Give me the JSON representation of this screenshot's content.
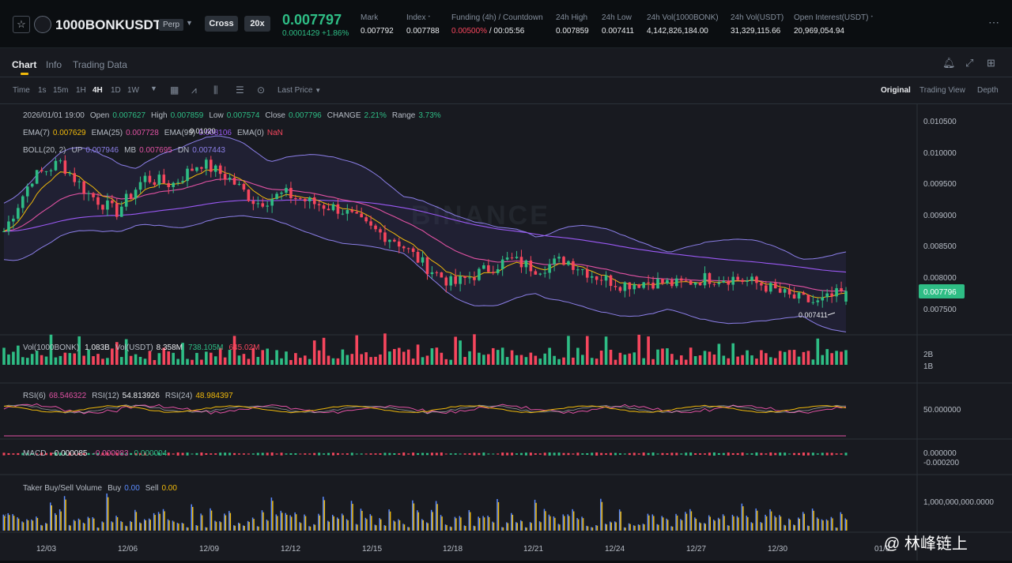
{
  "header": {
    "symbol": "1000BONKUSDT",
    "contract_type": "Perp",
    "margin_mode": "Cross",
    "leverage": "20x",
    "last_price": "0.007797",
    "change": "0.0001429 +1.86%",
    "stats": [
      {
        "label": "Mark",
        "value": "0.007792"
      },
      {
        "label": "Index",
        "value": "0.007788"
      },
      {
        "label": "Funding (4h) / Countdown",
        "value_a": "0.00500%",
        "value_b": " / 00:05:56"
      },
      {
        "label": "24h High",
        "value": "0.007859"
      },
      {
        "label": "24h Low",
        "value": "0.007411"
      },
      {
        "label": "24h Vol(1000BONK)",
        "value": "4,142,826,184.00"
      },
      {
        "label": "24h Vol(USDT)",
        "value": "31,329,115.66"
      },
      {
        "label": "Open Interest(USDT)",
        "value": "20,969,054.94"
      }
    ]
  },
  "tabs": [
    "Chart",
    "Info",
    "Trading Data"
  ],
  "toolbar": {
    "intervals": [
      "Time",
      "1s",
      "15m",
      "1H",
      "4H",
      "1D",
      "1W"
    ],
    "active_interval": "4H",
    "price_type": "Last Price",
    "views": [
      "Original",
      "Trading View",
      "Depth"
    ],
    "active_view": "Original"
  },
  "legend": {
    "ohlc": {
      "date": "2026/01/01 19:00",
      "open_l": "Open",
      "open": "0.007627",
      "high_l": "High",
      "high": "0.007859",
      "low_l": "Low",
      "low": "0.007574",
      "close_l": "Close",
      "close": "0.007796",
      "change_l": "CHANGE",
      "change": "2.21%",
      "range_l": "Range",
      "range": "3.73%"
    },
    "ema": {
      "ema7_l": "EMA(7)",
      "ema7": "0.007629",
      "ema25_l": "EMA(25)",
      "ema25": "0.007728",
      "ema99_l": "EMA(99)",
      "ema99": "0.008106",
      "ema0_l": "EMA(0)",
      "ema0": "NaN"
    },
    "boll": {
      "label": "BOLL(20, 2)",
      "up_l": "UP",
      "up": "0.007946",
      "mb_l": "MB",
      "mb": "0.007695",
      "dn_l": "DN",
      "dn": "0.007443"
    },
    "vol": {
      "label": "Vol(1000BONK)",
      "v1": "1.083B",
      "usdt_l": "Vol(USDT)",
      "v2": "8.358M",
      "v3": "738.105M",
      "v4": "645.02M"
    },
    "rsi": {
      "r6_l": "RSI(6)",
      "r6": "68.546322",
      "r12_l": "RSI(12)",
      "r12": "54.813926",
      "r24_l": "RSI(24)",
      "r24": "48.984397"
    },
    "macd": {
      "label": "MACD",
      "v1": "-0.000085",
      "v2": "-0.000083",
      "v3": "0.000004"
    },
    "taker": {
      "label": "Taker Buy/Sell Volume",
      "buy_l": "Buy",
      "buy": "0.00",
      "sell_l": "Sell",
      "sell": "0.00"
    }
  },
  "axis": {
    "price_ticks": [
      "0.010500",
      "0.010000",
      "0.009500",
      "0.009000",
      "0.008500",
      "0.008000",
      "0.007500"
    ],
    "current_price_tag": "0.007796",
    "low_marker": "0.007411",
    "high_marker": "0.01020",
    "vol_ticks": [
      "2B",
      "1B"
    ],
    "rsi_ticks": [
      "50.000000"
    ],
    "macd_ticks": [
      "0.000000",
      "-0.000200"
    ],
    "taker_ticks": [
      "1,000,000,000.0000"
    ],
    "dates": [
      "12/03",
      "12/06",
      "12/09",
      "12/12",
      "12/15",
      "12/18",
      "12/21",
      "12/24",
      "12/27",
      "12/30",
      "01/0"
    ]
  },
  "brand_watermark": "BINANCE",
  "image_watermark": "@ 林峰链上",
  "colors": {
    "up": "#2ebd85",
    "down": "#f6465d",
    "ema7": "#f0b90b",
    "ema25": "#e052a3",
    "ema99": "#9b59f5",
    "boll": "#8c7fe8",
    "bg": "#181a20"
  },
  "chart_data": {
    "type": "candlestick",
    "interval": "4H",
    "symbol": "1000BONKUSDT",
    "last_candle": {
      "time": "2026/01/01 19:00",
      "open": 0.007627,
      "high": 0.007859,
      "low": 0.007574,
      "close": 0.007796
    },
    "price_range": [
      0.0072,
      0.0107
    ],
    "anchor_closes": [
      [
        "12/02",
        0.00875
      ],
      [
        "12/03",
        0.0096
      ],
      [
        "12/04",
        0.00985
      ],
      [
        "12/05",
        0.00935
      ],
      [
        "12/06",
        0.00905
      ],
      [
        "12/07",
        0.0096
      ],
      [
        "12/08",
        0.0095
      ],
      [
        "12/09",
        0.00985
      ],
      [
        "12/10",
        0.0096
      ],
      [
        "12/11",
        0.0092
      ],
      [
        "12/12",
        0.00935
      ],
      [
        "12/13",
        0.0092
      ],
      [
        "12/14",
        0.0091
      ],
      [
        "12/15",
        0.0088
      ],
      [
        "12/16",
        0.0086
      ],
      [
        "12/17",
        0.0082
      ],
      [
        "12/18",
        0.0079
      ],
      [
        "12/19",
        0.0081
      ],
      [
        "12/20",
        0.0083
      ],
      [
        "12/21",
        0.00815
      ],
      [
        "12/22",
        0.0083
      ],
      [
        "12/23",
        0.00805
      ],
      [
        "12/24",
        0.0079
      ],
      [
        "12/25",
        0.00795
      ],
      [
        "12/26",
        0.0079
      ],
      [
        "12/27",
        0.008
      ],
      [
        "12/28",
        0.008
      ],
      [
        "12/29",
        0.0079
      ],
      [
        "12/30",
        0.0077
      ],
      [
        "12/31",
        0.0076
      ],
      [
        "01/01",
        0.0078
      ]
    ]
  }
}
